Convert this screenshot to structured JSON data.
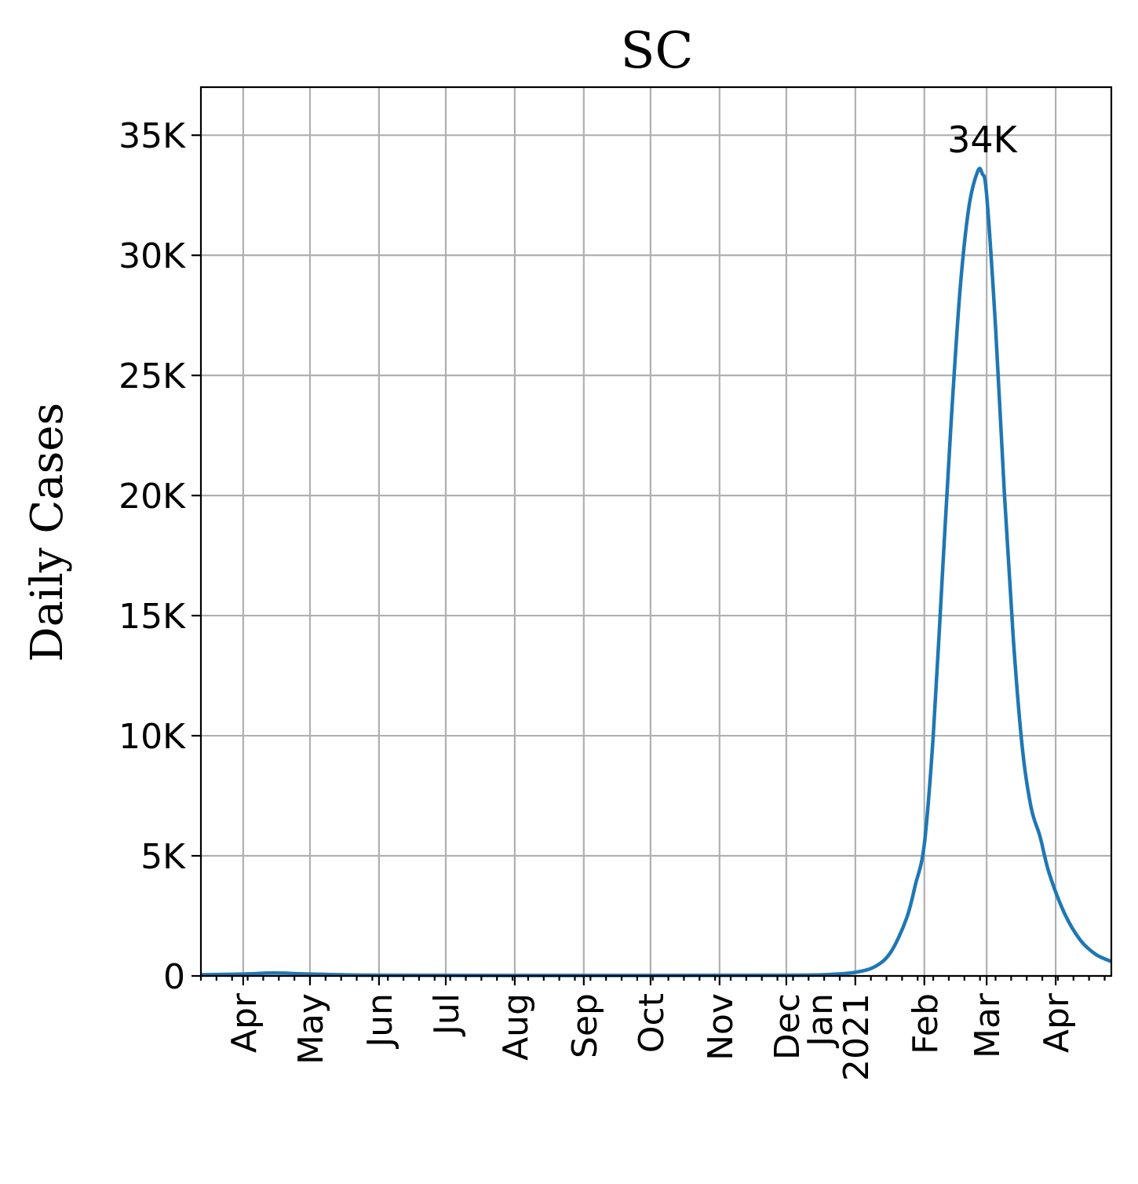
{
  "chart_data": {
    "type": "line",
    "title": "SC",
    "xlabel": "",
    "ylabel": "Daily Cases",
    "ylim": [
      0,
      37000
    ],
    "xlim": [
      "2020-03-13",
      "2021-04-26"
    ],
    "grid": true,
    "y_ticks": [
      {
        "value": 0,
        "label": "0"
      },
      {
        "value": 5000,
        "label": "5K"
      },
      {
        "value": 10000,
        "label": "10K"
      },
      {
        "value": 15000,
        "label": "15K"
      },
      {
        "value": 20000,
        "label": "20K"
      },
      {
        "value": 25000,
        "label": "25K"
      },
      {
        "value": 30000,
        "label": "30K"
      },
      {
        "value": 35000,
        "label": "35K"
      }
    ],
    "x_ticks": [
      {
        "date": "2020-04-01",
        "label": "Apr"
      },
      {
        "date": "2020-05-01",
        "label": "May"
      },
      {
        "date": "2020-06-01",
        "label": "Jun"
      },
      {
        "date": "2020-07-01",
        "label": "Jul"
      },
      {
        "date": "2020-08-01",
        "label": "Aug"
      },
      {
        "date": "2020-09-01",
        "label": "Sep"
      },
      {
        "date": "2020-10-01",
        "label": "Oct"
      },
      {
        "date": "2020-11-01",
        "label": "Nov"
      },
      {
        "date": "2020-12-01",
        "label": "Dec"
      },
      {
        "date": "2021-01-01",
        "label": "Jan\n2021"
      },
      {
        "date": "2021-02-01",
        "label": "Feb"
      },
      {
        "date": "2021-03-01",
        "label": "Mar"
      },
      {
        "date": "2021-04-01",
        "label": "Apr"
      }
    ],
    "annotations": [
      {
        "text": "34K",
        "date": "2021-02-27",
        "value": 33500
      }
    ],
    "series": [
      {
        "color": "#1f77b4",
        "points": [
          [
            "2020-03-13",
            50
          ],
          [
            "2020-04-01",
            80
          ],
          [
            "2020-04-15",
            120
          ],
          [
            "2020-05-01",
            80
          ],
          [
            "2020-06-01",
            30
          ],
          [
            "2020-09-01",
            20
          ],
          [
            "2020-12-01",
            30
          ],
          [
            "2020-12-20",
            60
          ],
          [
            "2021-01-01",
            150
          ],
          [
            "2021-01-10",
            400
          ],
          [
            "2021-01-17",
            1000
          ],
          [
            "2021-01-24",
            2400
          ],
          [
            "2021-01-28",
            3800
          ],
          [
            "2021-02-01",
            5500
          ],
          [
            "2021-02-05",
            10000
          ],
          [
            "2021-02-09",
            16500
          ],
          [
            "2021-02-13",
            23000
          ],
          [
            "2021-02-17",
            28500
          ],
          [
            "2021-02-21",
            32000
          ],
          [
            "2021-02-25",
            33500
          ],
          [
            "2021-02-27",
            33400
          ],
          [
            "2021-03-01",
            32500
          ],
          [
            "2021-03-05",
            27000
          ],
          [
            "2021-03-09",
            20000
          ],
          [
            "2021-03-13",
            14000
          ],
          [
            "2021-03-17",
            9500
          ],
          [
            "2021-03-21",
            7000
          ],
          [
            "2021-03-25",
            5800
          ],
          [
            "2021-03-29",
            4300
          ],
          [
            "2021-04-05",
            2600
          ],
          [
            "2021-04-12",
            1500
          ],
          [
            "2021-04-19",
            900
          ],
          [
            "2021-04-26",
            600
          ]
        ]
      }
    ]
  }
}
